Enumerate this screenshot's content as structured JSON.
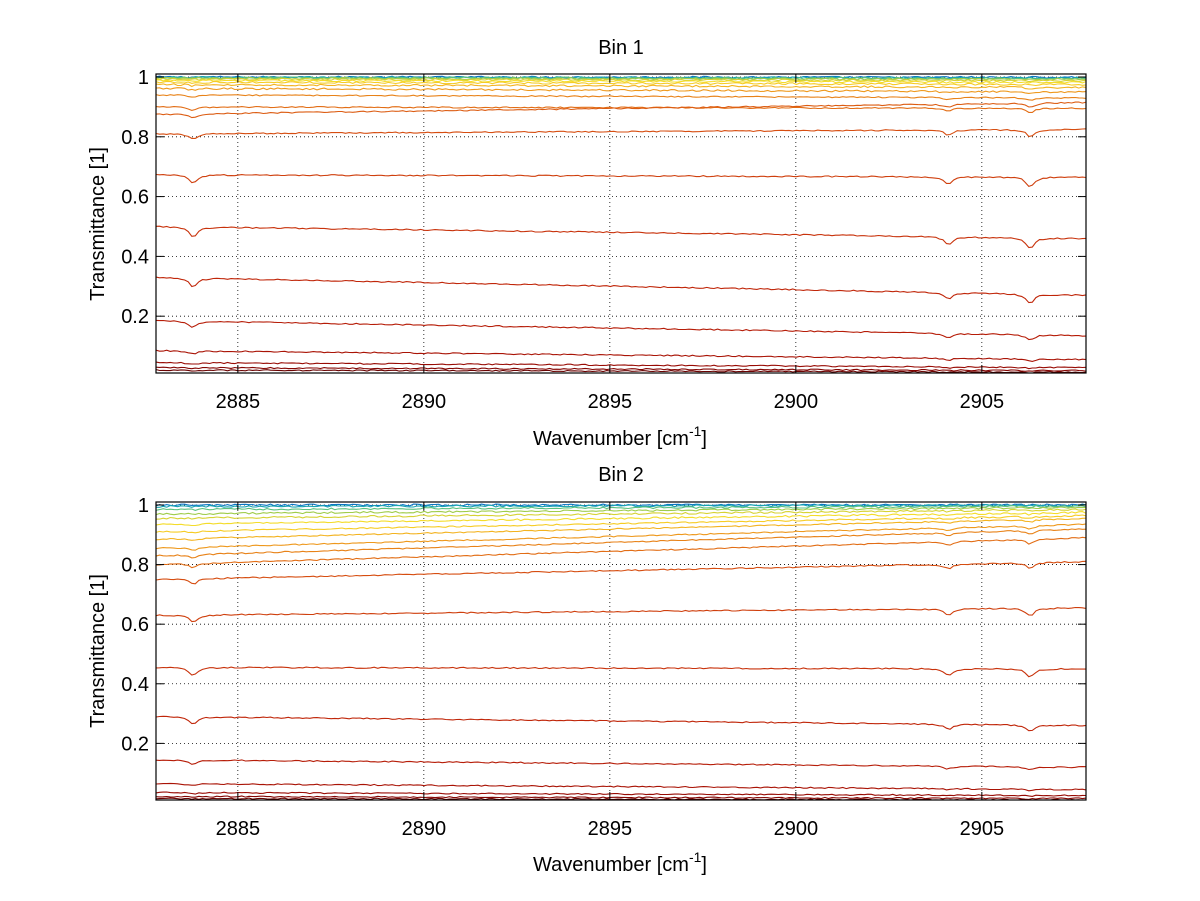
{
  "chart_data": [
    {
      "type": "line",
      "title": "Bin 1",
      "xlabel": "Wavenumber [cm",
      "xlabel_exponent": "-1",
      "xlabel_suffix": "]",
      "ylabel": "Transmittance [1]",
      "xlim": [
        2882.8,
        2907.8
      ],
      "ylim": [
        0.01,
        1.01
      ],
      "grid": true,
      "legend": "none",
      "x_ticks": [
        2885,
        2890,
        2895,
        2900,
        2905
      ],
      "x_tick_labels": [
        "2885",
        "2890",
        "2895",
        "2900",
        "2905"
      ],
      "y_ticks": [
        0.2,
        0.4,
        0.6,
        0.8,
        1
      ],
      "y_tick_labels": [
        "0.2",
        "0.4",
        "0.6",
        "0.8",
        "1"
      ],
      "absorption_lines": [
        {
          "x": 2883.8,
          "relative_depth": 0.06
        },
        {
          "x": 2904.1,
          "relative_depth": 0.05
        },
        {
          "x": 2906.3,
          "relative_depth": 0.07
        }
      ],
      "series": [
        {
          "color": "#0a77c4",
          "values": [
            1.0,
            0.999
          ]
        },
        {
          "color": "#1aa6b2",
          "values": [
            0.999,
            0.997
          ]
        },
        {
          "color": "#5cc07e",
          "values": [
            0.998,
            0.995
          ]
        },
        {
          "color": "#9fcc4a",
          "values": [
            0.996,
            0.992
          ]
        },
        {
          "color": "#d6d233",
          "values": [
            0.993,
            0.988
          ]
        },
        {
          "color": "#f4dc2a",
          "values": [
            0.989,
            0.982
          ]
        },
        {
          "color": "#f6cc25",
          "values": [
            0.983,
            0.975
          ]
        },
        {
          "color": "#f3b320",
          "values": [
            0.975,
            0.965
          ]
        },
        {
          "color": "#ee981c",
          "values": [
            0.962,
            0.95
          ]
        },
        {
          "color": "#e88218",
          "values": [
            0.94,
            0.93
          ]
        },
        {
          "color": "#e26d15",
          "values": [
            0.9,
            0.895
          ]
        },
        {
          "color": "#dc5c12",
          "values": [
            0.875,
            0.915
          ]
        },
        {
          "color": "#d64d10",
          "values": [
            0.81,
            0.825
          ]
        },
        {
          "color": "#cf3f0d",
          "values": [
            0.673,
            0.665
          ]
        },
        {
          "color": "#c8320b",
          "values": [
            0.5,
            0.46
          ]
        },
        {
          "color": "#c02609",
          "values": [
            0.33,
            0.27
          ]
        },
        {
          "color": "#b61c07",
          "values": [
            0.185,
            0.135
          ]
        },
        {
          "color": "#a91305",
          "values": [
            0.085,
            0.055
          ]
        },
        {
          "color": "#980b04",
          "values": [
            0.045,
            0.028
          ]
        },
        {
          "color": "#840603",
          "values": [
            0.028,
            0.018
          ]
        },
        {
          "color": "#6a0302",
          "values": [
            0.02,
            0.013
          ]
        }
      ]
    },
    {
      "type": "line",
      "title": "Bin 2",
      "xlabel": "Wavenumber [cm",
      "xlabel_exponent": "-1",
      "xlabel_suffix": "]",
      "ylabel": "Transmittance [1]",
      "xlim": [
        2882.8,
        2907.8
      ],
      "ylim": [
        0.01,
        1.01
      ],
      "grid": true,
      "legend": "none",
      "x_ticks": [
        2885,
        2890,
        2895,
        2900,
        2905
      ],
      "x_tick_labels": [
        "2885",
        "2890",
        "2895",
        "2900",
        "2905"
      ],
      "y_ticks": [
        0.2,
        0.4,
        0.6,
        0.8,
        1
      ],
      "y_tick_labels": [
        "0.2",
        "0.4",
        "0.6",
        "0.8",
        "1"
      ],
      "absorption_lines": [
        {
          "x": 2883.8,
          "relative_depth": 0.05
        },
        {
          "x": 2904.1,
          "relative_depth": 0.04
        },
        {
          "x": 2906.3,
          "relative_depth": 0.05
        }
      ],
      "series": [
        {
          "color": "#0a77c4",
          "values": [
            1.0,
            1.0
          ]
        },
        {
          "color": "#1aa6b2",
          "values": [
            0.995,
            0.999
          ]
        },
        {
          "color": "#5cc07e",
          "values": [
            0.985,
            0.996
          ]
        },
        {
          "color": "#9fcc4a",
          "values": [
            0.97,
            0.992
          ]
        },
        {
          "color": "#d6d233",
          "values": [
            0.955,
            0.985
          ]
        },
        {
          "color": "#f4dc2a",
          "values": [
            0.935,
            0.975
          ]
        },
        {
          "color": "#f6cc25",
          "values": [
            0.91,
            0.965
          ]
        },
        {
          "color": "#f3b320",
          "values": [
            0.885,
            0.955
          ]
        },
        {
          "color": "#ee981c",
          "values": [
            0.855,
            0.935
          ]
        },
        {
          "color": "#e88218",
          "values": [
            0.83,
            0.92
          ]
        },
        {
          "color": "#e26d15",
          "values": [
            0.8,
            0.89
          ]
        },
        {
          "color": "#d64d10",
          "values": [
            0.75,
            0.81
          ]
        },
        {
          "color": "#cf3f0d",
          "values": [
            0.63,
            0.655
          ]
        },
        {
          "color": "#c8320b",
          "values": [
            0.455,
            0.45
          ]
        },
        {
          "color": "#c02609",
          "values": [
            0.29,
            0.26
          ]
        },
        {
          "color": "#b61c07",
          "values": [
            0.145,
            0.12
          ]
        },
        {
          "color": "#a91305",
          "values": [
            0.065,
            0.045
          ]
        },
        {
          "color": "#980b04",
          "values": [
            0.035,
            0.025
          ]
        },
        {
          "color": "#840603",
          "values": [
            0.022,
            0.015
          ]
        },
        {
          "color": "#6a0302",
          "values": [
            0.015,
            0.01
          ]
        }
      ]
    }
  ]
}
